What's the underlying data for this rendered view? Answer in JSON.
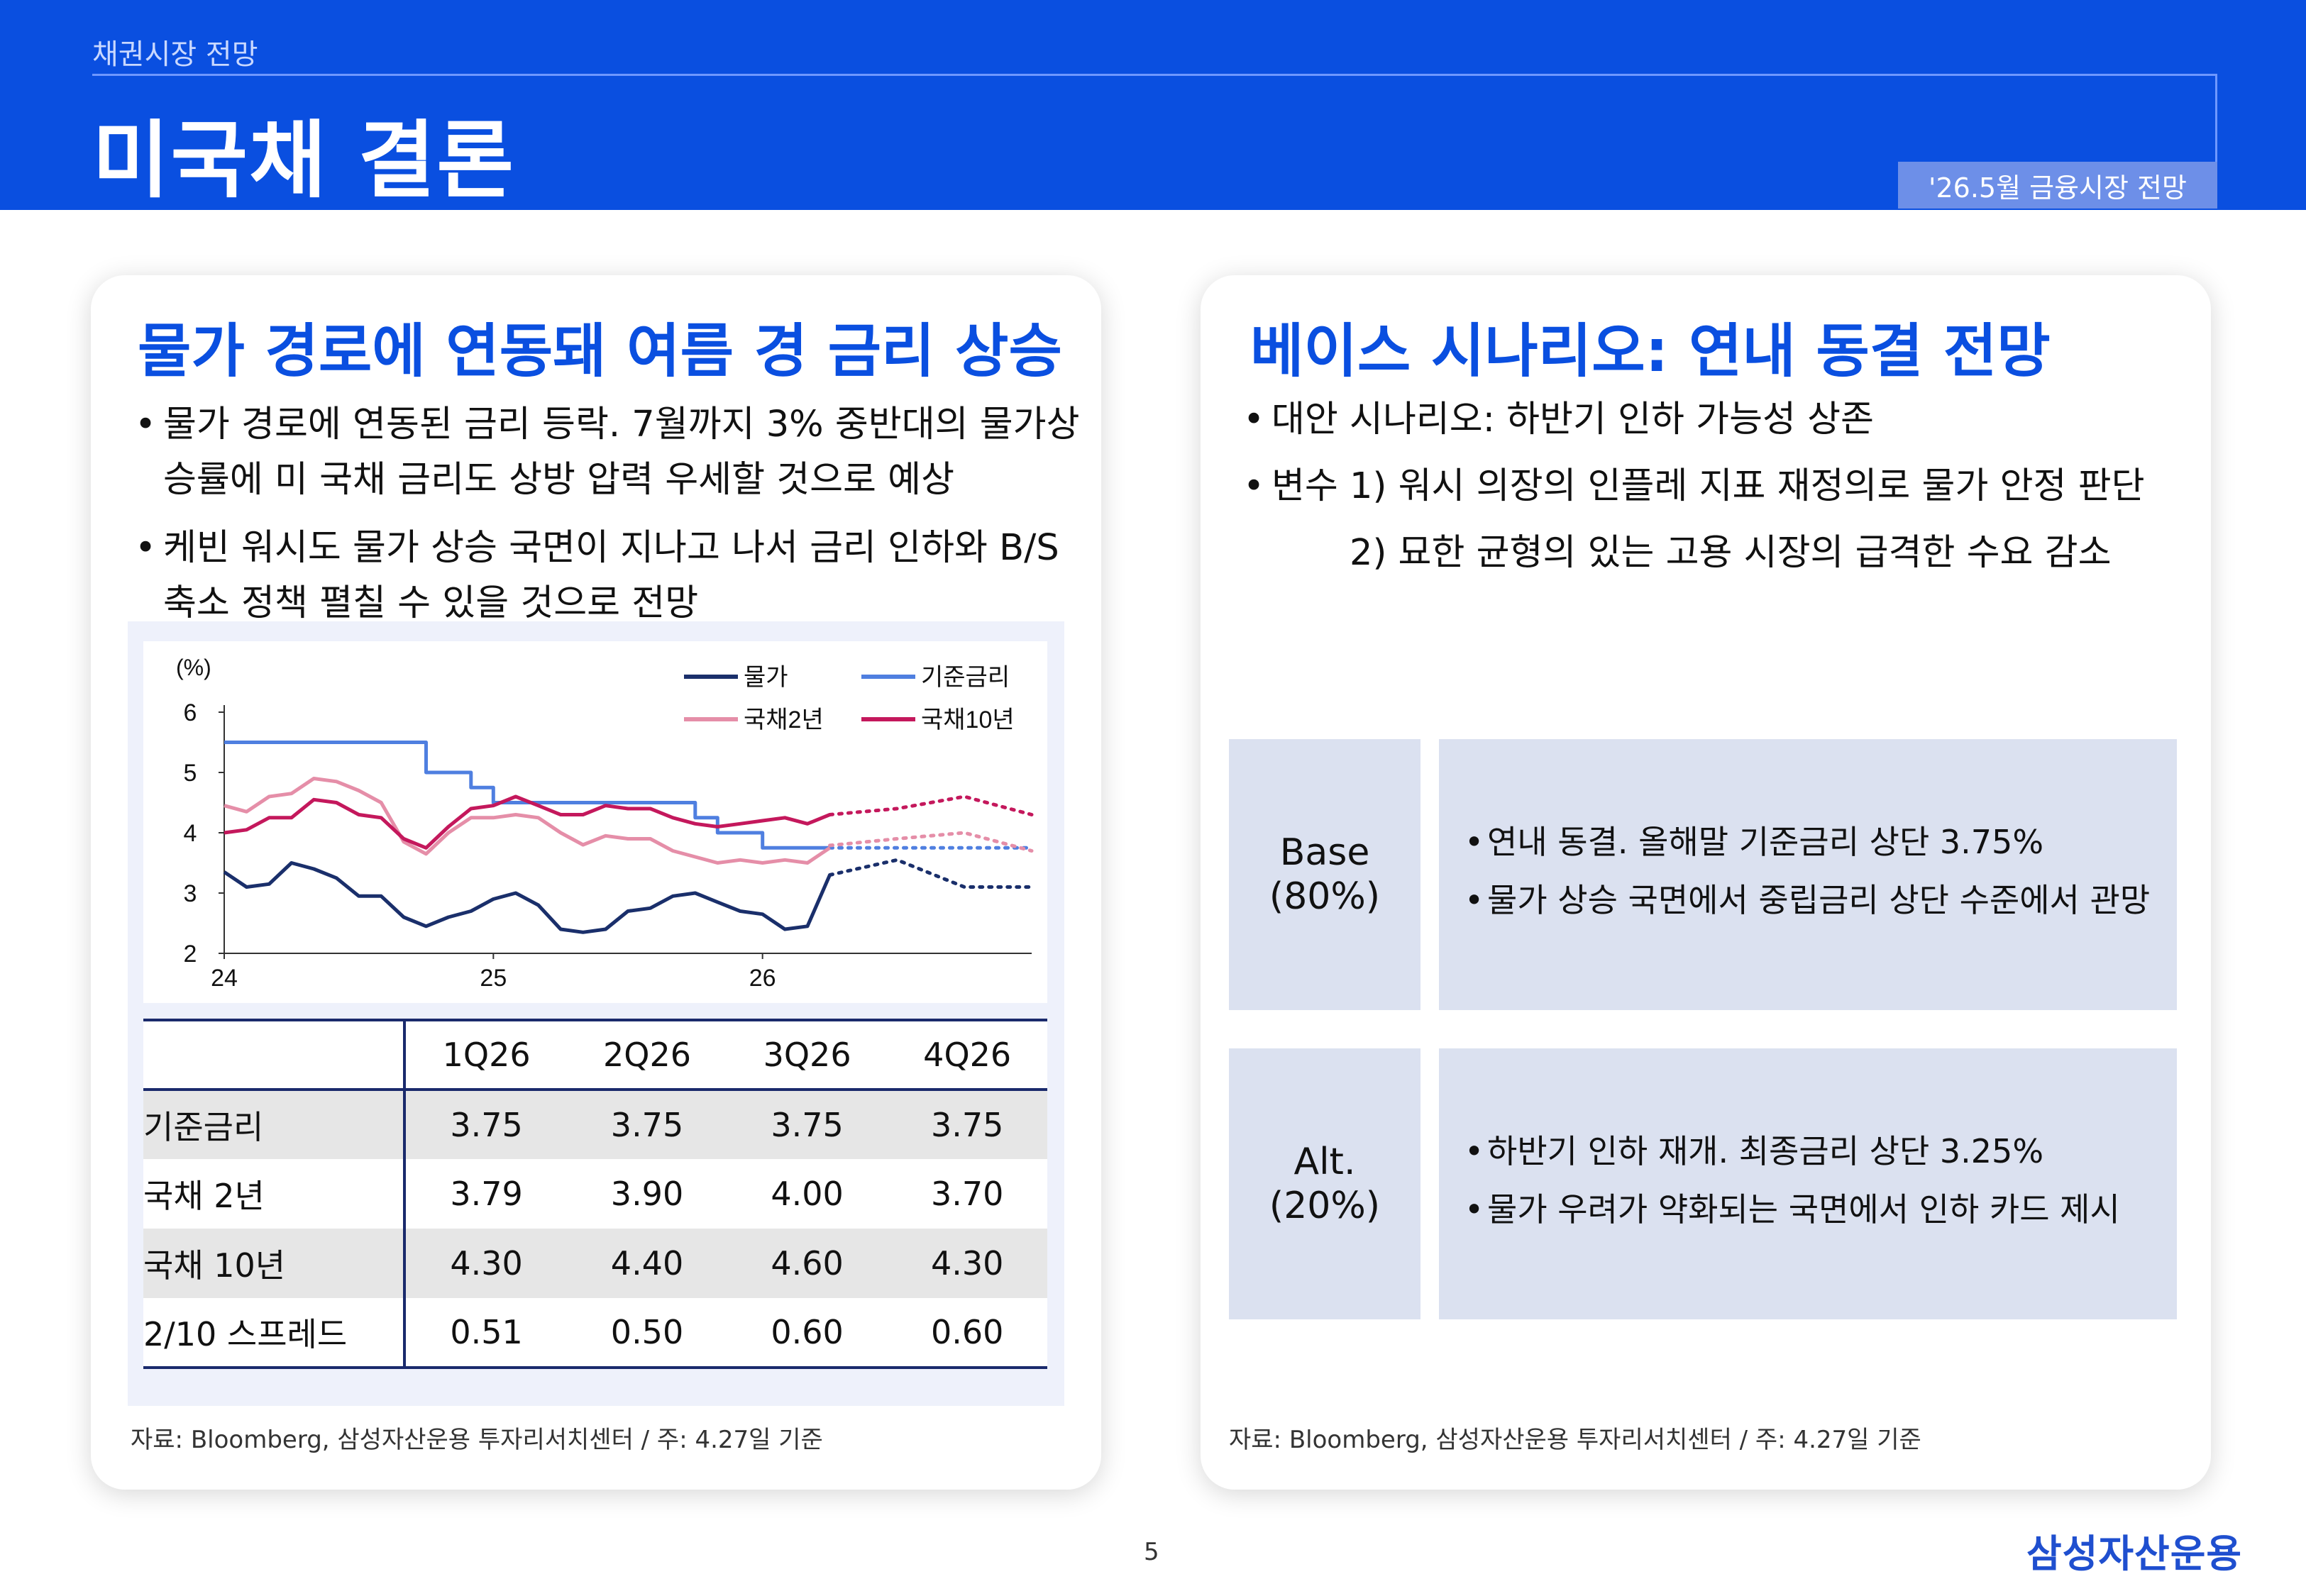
{
  "header": {
    "section": "채권시장 전망",
    "title": "미국채 결론",
    "badge": "'26.5월 금융시장 전망"
  },
  "left_card": {
    "title": "물가 경로에 연동돼 여름 경 금리 상승",
    "bullets": [
      "물가 경로에 연동된 금리 등락. 7월까지 3% 중반대의 물가상승률에 미 국채 금리도 상방 압력 우세할 것으로 예상",
      "케빈 워시도 물가 상승 국면이 지나고 나서 금리 인하와 B/S 축소 정책 펼칠 수 있을 것으로 전망"
    ],
    "source": "자료: Bloomberg, 삼성자산운용 투자리서치센터 / 주: 4.27일 기준"
  },
  "chart_data": {
    "type": "line",
    "unit_label": "(%)",
    "ylim": [
      2,
      6
    ],
    "yticks": [
      "2",
      "3",
      "4",
      "5",
      "6"
    ],
    "xlim": [
      24.0,
      27.0
    ],
    "xticks": [
      {
        "value": 24.0,
        "label": "24"
      },
      {
        "value": 25.0,
        "label": "25"
      },
      {
        "value": 26.0,
        "label": "26"
      }
    ],
    "legend_position": "top-right",
    "forecast_start": 26.25,
    "series": [
      {
        "name": "물가",
        "color": "#1a2f6b",
        "x": [
          24.0,
          24.083,
          24.167,
          24.25,
          24.333,
          24.417,
          24.5,
          24.583,
          24.667,
          24.75,
          24.833,
          24.917,
          25.0,
          25.083,
          25.167,
          25.25,
          25.333,
          25.417,
          25.5,
          25.583,
          25.667,
          25.75,
          25.833,
          25.917,
          26.0,
          26.083,
          26.167,
          26.25
        ],
        "values": [
          3.35,
          3.1,
          3.15,
          3.5,
          3.4,
          3.25,
          2.95,
          2.95,
          2.6,
          2.45,
          2.6,
          2.7,
          2.9,
          3.0,
          2.8,
          2.4,
          2.35,
          2.4,
          2.7,
          2.75,
          2.95,
          3.0,
          2.85,
          2.7,
          2.65,
          2.4,
          2.45,
          3.3
        ],
        "forecast_x": [
          26.25,
          26.5,
          26.75,
          27.0
        ],
        "forecast_values": [
          3.3,
          3.55,
          3.1,
          3.1
        ]
      },
      {
        "name": "기준금리",
        "color": "#4f7fe0",
        "x": [
          24.0,
          24.75,
          24.75,
          24.917,
          24.917,
          25.0,
          25.0,
          25.75,
          25.75,
          25.833,
          25.833,
          26.0,
          26.0,
          26.25
        ],
        "values": [
          5.5,
          5.5,
          5.0,
          5.0,
          4.75,
          4.75,
          4.5,
          4.5,
          4.25,
          4.25,
          4.0,
          4.0,
          3.75,
          3.75
        ],
        "forecast_x": [
          26.25,
          26.5,
          26.75,
          27.0
        ],
        "forecast_values": [
          3.75,
          3.75,
          3.75,
          3.75
        ]
      },
      {
        "name": "국채2년",
        "color": "#e58ea8",
        "x": [
          24.0,
          24.083,
          24.167,
          24.25,
          24.333,
          24.417,
          24.5,
          24.583,
          24.667,
          24.75,
          24.833,
          24.917,
          25.0,
          25.083,
          25.167,
          25.25,
          25.333,
          25.417,
          25.5,
          25.583,
          25.667,
          25.75,
          25.833,
          25.917,
          26.0,
          26.083,
          26.167,
          26.25
        ],
        "values": [
          4.45,
          4.35,
          4.6,
          4.65,
          4.9,
          4.85,
          4.7,
          4.5,
          3.85,
          3.65,
          4.0,
          4.25,
          4.25,
          4.3,
          4.25,
          4.0,
          3.8,
          3.95,
          3.9,
          3.9,
          3.7,
          3.6,
          3.5,
          3.55,
          3.5,
          3.55,
          3.5,
          3.75
        ],
        "forecast_x": [
          26.25,
          26.5,
          26.75,
          27.0
        ],
        "forecast_values": [
          3.79,
          3.9,
          4.0,
          3.7
        ]
      },
      {
        "name": "국채10년",
        "color": "#c4185c",
        "x": [
          24.0,
          24.083,
          24.167,
          24.25,
          24.333,
          24.417,
          24.5,
          24.583,
          24.667,
          24.75,
          24.833,
          24.917,
          25.0,
          25.083,
          25.167,
          25.25,
          25.333,
          25.417,
          25.5,
          25.583,
          25.667,
          25.75,
          25.833,
          25.917,
          26.0,
          26.083,
          26.167,
          26.25
        ],
        "values": [
          4.0,
          4.05,
          4.25,
          4.25,
          4.55,
          4.5,
          4.3,
          4.25,
          3.9,
          3.75,
          4.1,
          4.4,
          4.45,
          4.6,
          4.45,
          4.3,
          4.3,
          4.45,
          4.4,
          4.4,
          4.25,
          4.15,
          4.1,
          4.15,
          4.2,
          4.25,
          4.15,
          4.3
        ],
        "forecast_x": [
          26.25,
          26.5,
          26.75,
          27.0
        ],
        "forecast_values": [
          4.3,
          4.4,
          4.6,
          4.3
        ]
      }
    ]
  },
  "table": {
    "columns": [
      "",
      "1Q26",
      "2Q26",
      "3Q26",
      "4Q26"
    ],
    "rows": [
      {
        "label": "기준금리",
        "values": [
          "3.75",
          "3.75",
          "3.75",
          "3.75"
        ]
      },
      {
        "label": "국채 2년",
        "values": [
          "3.79",
          "3.90",
          "4.00",
          "3.70"
        ]
      },
      {
        "label": "국채 10년",
        "values": [
          "4.30",
          "4.40",
          "4.60",
          "4.30"
        ]
      },
      {
        "label": "2/10 스프레드",
        "values": [
          "0.51",
          "0.50",
          "0.60",
          "0.60"
        ]
      }
    ]
  },
  "right_card": {
    "title": "베이스 시나리오: 연내 동결 전망",
    "bullets": [
      "대안 시나리오: 하반기 인하 가능성 상존",
      "변수 1) 워시 의장의 인플레 지표 재정의로 물가 안정 판단"
    ],
    "sub_bullet": "2) 묘한 균형의 있는 고용 시장의 급격한 수요 감소",
    "scenarios": [
      {
        "label_line1": "Base",
        "label_line2": "(80%)",
        "points": [
          "연내 동결. 올해말 기준금리 상단 3.75%",
          "물가 상승 국면에서 중립금리 상단 수준에서 관망"
        ]
      },
      {
        "label_line1": "Alt.",
        "label_line2": "(20%)",
        "points": [
          "하반기 인하 재개. 최종금리 상단 3.25%",
          "물가 우려가 약화되는 국면에서 인하 카드 제시"
        ]
      }
    ],
    "source": "자료: Bloomberg, 삼성자산운용 투자리서치센터 / 주: 4.27일 기준"
  },
  "footer": {
    "page_number": "5",
    "logo": "삼성자산운용"
  }
}
